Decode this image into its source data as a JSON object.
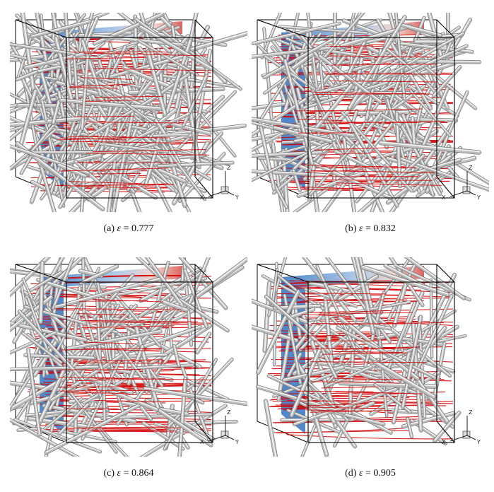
{
  "figure": {
    "panels": [
      {
        "id": "a",
        "label": "(a)",
        "symbol": "ε",
        "relation": "=",
        "value": "0.777",
        "porosity": 0.777
      },
      {
        "id": "b",
        "label": "(b)",
        "symbol": "ε",
        "relation": "=",
        "value": "0.832",
        "porosity": 0.832
      },
      {
        "id": "c",
        "label": "(c)",
        "symbol": "ε",
        "relation": "=",
        "value": "0.864",
        "porosity": 0.864
      },
      {
        "id": "d",
        "label": "(d)",
        "symbol": "ε",
        "relation": "=",
        "value": "0.905",
        "porosity": 0.905
      }
    ],
    "axes": {
      "x": "X",
      "y": "Y",
      "z": "Z"
    },
    "colors": {
      "fiber": "#bdbdbd",
      "fiber_edge": "#6e6e6e",
      "streamline": "#d40000",
      "slice_low": "#3a78c2",
      "slice_high": "#d9534f",
      "box": "#000000"
    }
  }
}
